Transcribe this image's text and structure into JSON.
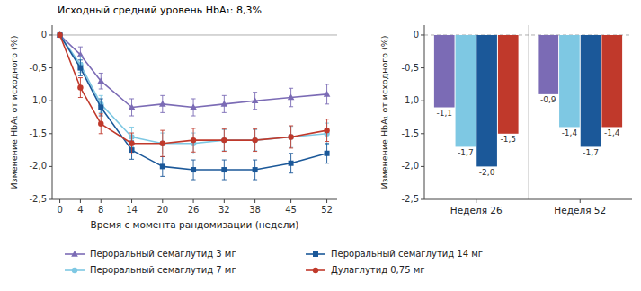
{
  "chart_data": [
    {
      "type": "line",
      "annotation": "Исходный средний уровень HbA₁⁣: 8,3%",
      "xlabel": "Время с момента рандомизации (недели)",
      "ylabel": "Изменение HbA₁⁣ от исходного (%)",
      "x": [
        0,
        4,
        8,
        14,
        20,
        26,
        32,
        38,
        45,
        52
      ],
      "xlim": [
        -1.5,
        54
      ],
      "xticks": [
        0,
        4,
        8,
        14,
        20,
        26,
        32,
        38,
        45,
        52
      ],
      "ylim": [
        -2.5,
        0.15
      ],
      "yticks": [
        {
          "value": -2.5,
          "label": "-2,5"
        },
        {
          "value": -2.0,
          "label": "-2,0"
        },
        {
          "value": -1.5,
          "label": "-1,5"
        },
        {
          "value": -1.0,
          "label": "-1,0"
        },
        {
          "value": -0.5,
          "label": "-0,5"
        },
        0
      ],
      "legend": "bottom",
      "series": [
        {
          "name": "Пероральный семаглутид 3 мг",
          "color": "#7B6BB5",
          "marker": "triangle",
          "values": [
            0.0,
            -0.3,
            -0.7,
            -1.1,
            -1.05,
            -1.1,
            -1.05,
            -1.0,
            -0.95,
            -0.9
          ],
          "errors": [
            0.0,
            0.12,
            0.12,
            0.13,
            0.13,
            0.13,
            0.13,
            0.13,
            0.14,
            0.15
          ]
        },
        {
          "name": "Пероральный семаглутид 7 мг",
          "color": "#7EC8E3",
          "marker": "circle",
          "values": [
            0.0,
            -0.45,
            -1.05,
            -1.55,
            -1.65,
            -1.65,
            -1.6,
            -1.6,
            -1.55,
            -1.5
          ],
          "errors": [
            0.0,
            0.12,
            0.13,
            0.15,
            0.16,
            0.16,
            0.16,
            0.16,
            0.16,
            0.16
          ]
        },
        {
          "name": "Пероральный семаглутид 14 мг",
          "color": "#1B5899",
          "marker": "square",
          "values": [
            0.0,
            -0.5,
            -1.1,
            -1.75,
            -2.0,
            -2.05,
            -2.05,
            -2.05,
            -1.95,
            -1.8
          ],
          "errors": [
            0.0,
            0.12,
            0.13,
            0.14,
            0.15,
            0.15,
            0.15,
            0.15,
            0.15,
            0.15
          ]
        },
        {
          "name": "Дулаглутид 0,75 мг",
          "color": "#C0392B",
          "marker": "circle",
          "values": [
            0.0,
            -0.8,
            -1.35,
            -1.65,
            -1.65,
            -1.6,
            -1.6,
            -1.6,
            -1.55,
            -1.45
          ],
          "errors": [
            0.0,
            0.15,
            0.15,
            0.16,
            0.2,
            0.18,
            0.17,
            0.17,
            0.17,
            0.17
          ]
        }
      ]
    },
    {
      "type": "bar",
      "ylabel": "Изменение HbA₁⁣ от исходного (%)",
      "categories": [
        "Неделя 26",
        "Неделя 52"
      ],
      "ylim": [
        -2.5,
        0.15
      ],
      "yticks": [
        {
          "value": -2.5,
          "label": "-2,5"
        },
        {
          "value": -2.0,
          "label": "-2,0"
        },
        {
          "value": -1.5,
          "label": "-1,5"
        },
        {
          "value": -1.0,
          "label": "-1,0"
        },
        {
          "value": -0.5,
          "label": "-0,5"
        },
        0
      ],
      "data_labels": true,
      "series": [
        {
          "color": "#7B6BB5",
          "values": [
            -1.1,
            -0.9
          ],
          "value_labels": [
            "-1,1",
            "-0,9"
          ]
        },
        {
          "color": "#7EC8E3",
          "values": [
            -1.7,
            -1.4
          ],
          "value_labels": [
            "-1,7",
            "-1,4"
          ]
        },
        {
          "color": "#1B5899",
          "values": [
            -2.0,
            -1.7
          ],
          "value_labels": [
            "-2,0",
            "-1,7"
          ]
        },
        {
          "color": "#C0392B",
          "values": [
            -1.5,
            -1.4
          ],
          "value_labels": [
            "-1,5",
            "-1,4"
          ]
        }
      ]
    }
  ]
}
